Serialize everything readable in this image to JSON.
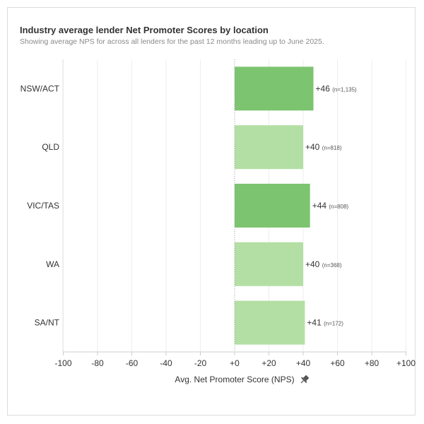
{
  "header": {
    "title": "Industry average lender Net Promoter Scores by location",
    "subtitle": "Showing average NPS for across all lenders for the past 12 months leading up to June 2025."
  },
  "chart_data": {
    "type": "bar",
    "orientation": "horizontal",
    "title": "Industry average lender Net Promoter Scores by location",
    "subtitle": "Showing average NPS for across all lenders for the past 12 months leading up to June 2025.",
    "xlabel": "Avg. Net Promoter Score (NPS)",
    "ylabel": "",
    "xlim": [
      -100,
      100
    ],
    "x_ticks": [
      -100,
      -80,
      -60,
      -40,
      -20,
      0,
      20,
      40,
      60,
      80,
      100
    ],
    "x_tick_labels": [
      "-100",
      "-80",
      "-60",
      "-40",
      "-20",
      "+0",
      "+20",
      "+40",
      "+60",
      "+80",
      "+100"
    ],
    "grid": true,
    "categories": [
      "NSW/ACT",
      "QLD",
      "VIC/TAS",
      "WA",
      "SA/NT"
    ],
    "values": [
      46,
      40,
      44,
      40,
      41
    ],
    "value_labels": [
      "+46",
      "+40",
      "+44",
      "+40",
      "+41"
    ],
    "sample_labels": [
      "(n=1,135)",
      "(n=818)",
      "(n=808)",
      "(n=368)",
      "(n=172)"
    ],
    "bar_colors": [
      "#7dc471",
      "#b3dfa4",
      "#7dc471",
      "#b3dfa4",
      "#b3dfa4"
    ],
    "pin_icon": "pin-icon"
  }
}
